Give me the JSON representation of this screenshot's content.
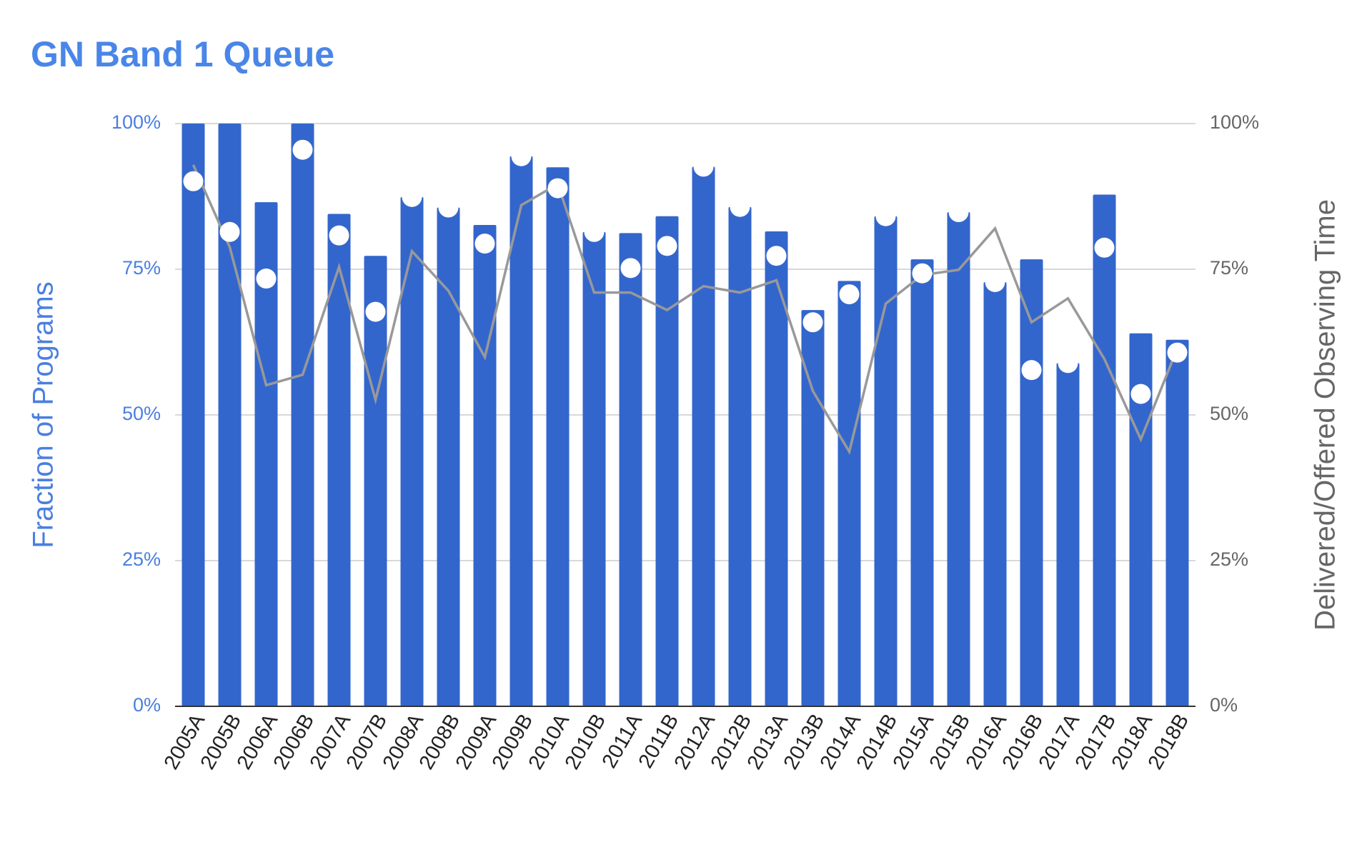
{
  "chart_data": {
    "type": "bar",
    "title": "GN Band 1 Queue",
    "y_label": "Fraction of Programs",
    "y2_label": "Delivered/Offered Observing Time",
    "categories": [
      "2005A",
      "2005B",
      "2006A",
      "2006B",
      "2007A",
      "2007B",
      "2008A",
      "2008B",
      "2009A",
      "2009B",
      "2010A",
      "2010B",
      "2011A",
      "2011B",
      "2012A",
      "2012B",
      "2013A",
      "2013B",
      "2014A",
      "2014B",
      "2015A",
      "2015B",
      "2016A",
      "2016B",
      "2017A",
      "2017B",
      "2018A",
      "2018B"
    ],
    "series": [
      {
        "type": "bar",
        "color": "#3366cc",
        "values": [
          100,
          100,
          86.5,
          100,
          84.5,
          77.3,
          87.4,
          85.6,
          82.6,
          94.4,
          92.5,
          81.4,
          81.2,
          84.1,
          92.6,
          85.7,
          81.5,
          68.0,
          73.0,
          84.1,
          76.7,
          84.8,
          72.8,
          76.7,
          58.9,
          87.8,
          64.0,
          62.9
        ]
      },
      {
        "type": "dots",
        "color": "#ffffff",
        "values": [
          90.1,
          81.4,
          73.4,
          95.5,
          80.8,
          67.7,
          87.4,
          85.6,
          79.4,
          94.4,
          88.9,
          81.4,
          75.2,
          79.0,
          92.6,
          85.7,
          77.3,
          65.9,
          70.7,
          84.1,
          74.3,
          84.8,
          72.8,
          57.7,
          58.9,
          78.7,
          53.6,
          60.7
        ]
      },
      {
        "type": "line",
        "axis": "y2",
        "color": "#999999",
        "values": [
          92.9,
          78.8,
          55.1,
          56.9,
          75.4,
          52.6,
          78.1,
          71.3,
          59.9,
          86.0,
          89.6,
          71.0,
          71.0,
          68.0,
          72.1,
          71.0,
          73.1,
          54.1,
          43.7,
          69.1,
          74.0,
          74.9,
          82.0,
          65.9,
          70.0,
          59.6,
          45.8,
          61.4
        ]
      }
    ],
    "ylim": [
      0,
      100
    ],
    "yticks": [
      {
        "value": 0,
        "label": "0%"
      },
      {
        "value": 25,
        "label": "25%"
      },
      {
        "value": 50,
        "label": "50%"
      },
      {
        "value": 75,
        "label": "75%"
      },
      {
        "value": 100,
        "label": "100%"
      }
    ],
    "y2lim": [
      0,
      100
    ],
    "y2ticks": [
      {
        "value": 0,
        "label": "0%"
      },
      {
        "value": 25,
        "label": "25%"
      },
      {
        "value": 50,
        "label": "50%"
      },
      {
        "value": 75,
        "label": "75%"
      },
      {
        "value": 100,
        "label": "100%"
      }
    ],
    "grid": true
  }
}
